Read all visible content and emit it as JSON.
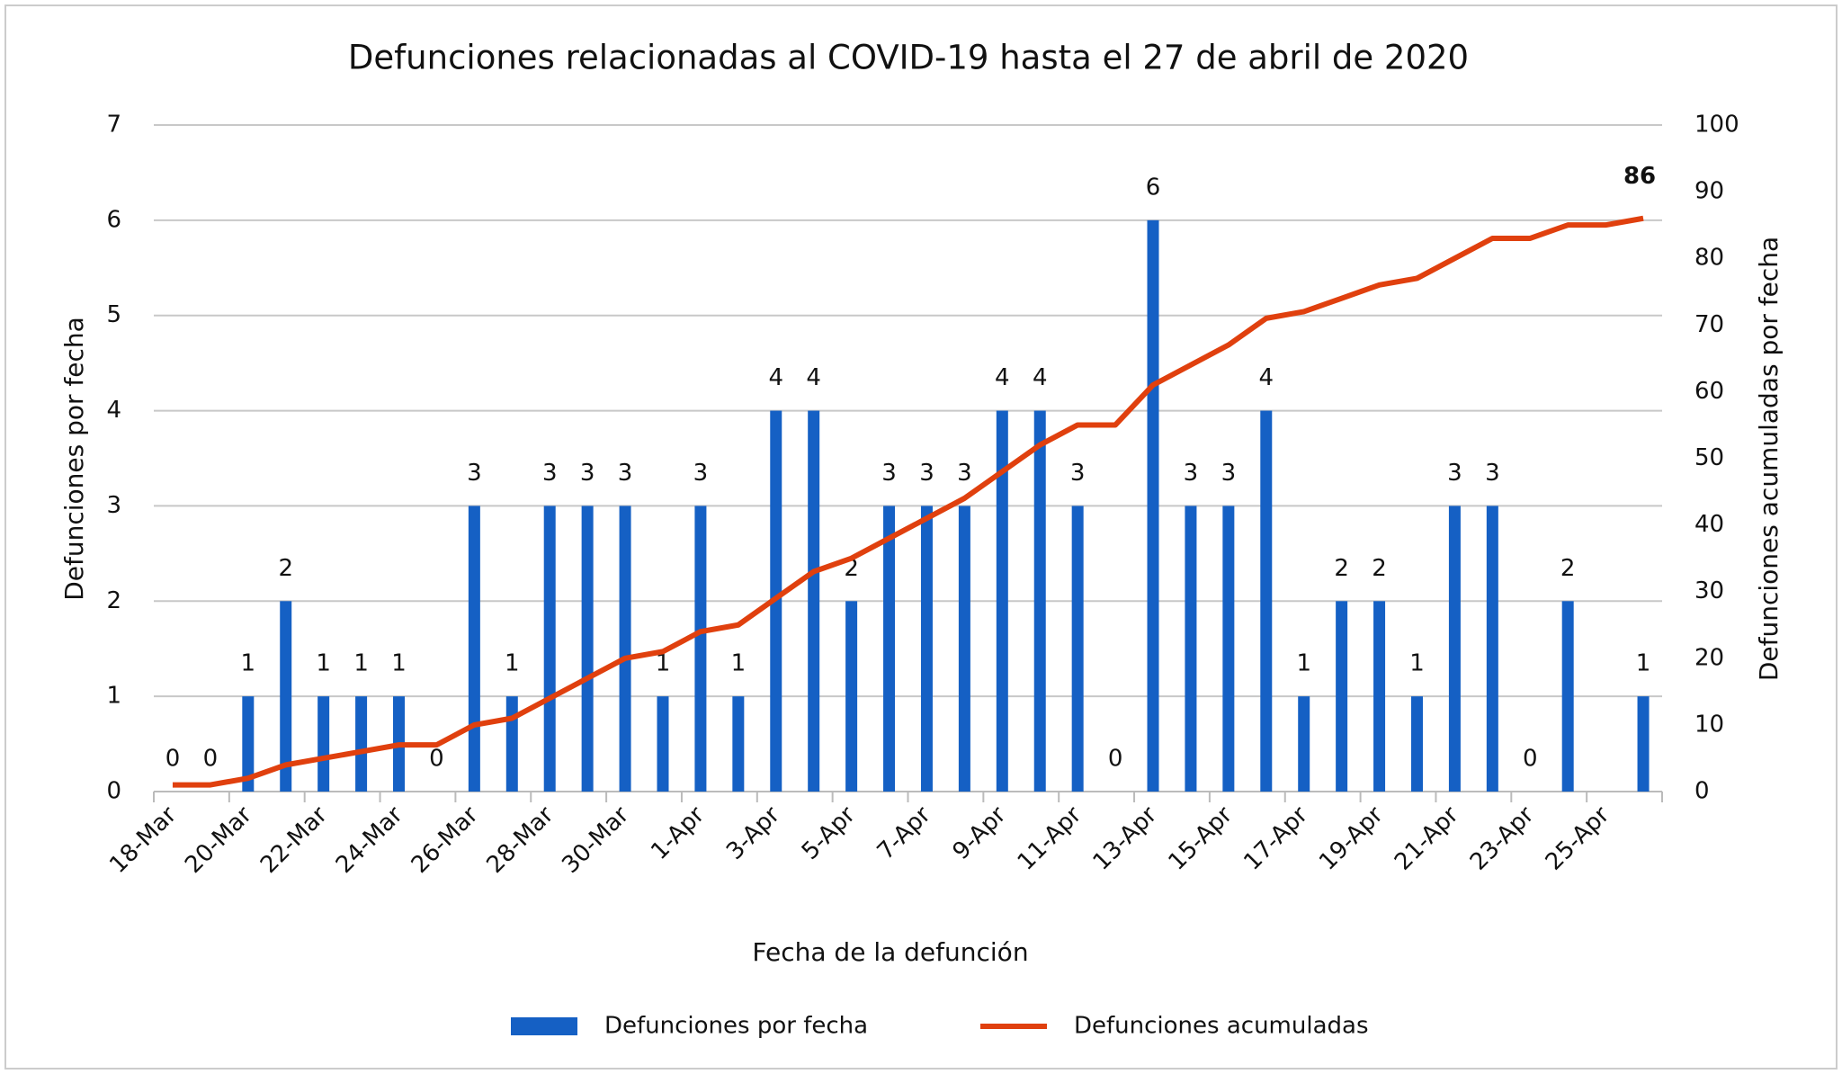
{
  "chart_data": {
    "type": "bar_line",
    "title": "Defunciones relacionadas al COVID-19 hasta el 27 de abril de 2020",
    "x_label": "Fecha de la defunción",
    "y_label": "Defunciones por fecha",
    "y2_label": "Defunciones acumuladas por fecha",
    "categories": [
      "18-Mar",
      null,
      "20-Mar",
      null,
      "22-Mar",
      null,
      "24-Mar",
      null,
      "26-Mar",
      null,
      "28-Mar",
      null,
      "30-Mar",
      null,
      "1-Apr",
      null,
      "3-Apr",
      null,
      "5-Apr",
      null,
      "7-Apr",
      null,
      "9-Apr",
      null,
      "11-Apr",
      null,
      "13-Apr",
      null,
      "15-Apr",
      null,
      "17-Apr",
      null,
      "19-Apr",
      null,
      "21-Apr",
      null,
      "23-Apr",
      null,
      "25-Apr",
      null
    ],
    "series": [
      {
        "name": "Defunciones por fecha",
        "color": "#1560c4",
        "type": "bar",
        "values": [
          0,
          0,
          1,
          2,
          1,
          1,
          1,
          0,
          3,
          1,
          3,
          3,
          3,
          1,
          3,
          1,
          4,
          4,
          2,
          3,
          3,
          3,
          4,
          4,
          3,
          0,
          6,
          3,
          3,
          4,
          1,
          2,
          2,
          1,
          3,
          3,
          0,
          2,
          0,
          1
        ],
        "value_labels": [
          "0",
          "0",
          "1",
          "2",
          "1",
          "1",
          "1",
          "0",
          "3",
          "1",
          "3",
          "3",
          "3",
          "1",
          "3",
          "1",
          "4",
          "4",
          "2",
          "3",
          "3",
          "3",
          "4",
          "4",
          "3",
          "0",
          "6",
          "3",
          "3",
          "4",
          "1",
          "2",
          "2",
          "1",
          "3",
          "3",
          "0",
          "2",
          null,
          "1"
        ]
      },
      {
        "name": "Defunciones acumuladas",
        "color": "#e0400e",
        "type": "line",
        "axis": "y2",
        "values": [
          1,
          1,
          2,
          4,
          5,
          6,
          7,
          7,
          10,
          11,
          14,
          17,
          20,
          21,
          24,
          25,
          29,
          33,
          35,
          38,
          41,
          44,
          48,
          52,
          55,
          55,
          61,
          64,
          67,
          71,
          72,
          74,
          76,
          77,
          80,
          83,
          83,
          85,
          85,
          86
        ],
        "value_labels": [
          null,
          null,
          null,
          null,
          null,
          null,
          null,
          null,
          null,
          null,
          null,
          null,
          null,
          null,
          null,
          null,
          null,
          null,
          null,
          null,
          null,
          null,
          null,
          null,
          null,
          null,
          null,
          null,
          null,
          null,
          null,
          null,
          null,
          null,
          null,
          null,
          null,
          null,
          null,
          "86"
        ]
      }
    ],
    "ylim": [
      0,
      7
    ],
    "yticks": [
      0,
      1,
      2,
      3,
      4,
      5,
      6,
      7
    ],
    "y2lim": [
      0,
      100
    ],
    "y2ticks": [
      0,
      10,
      20,
      30,
      40,
      50,
      60,
      70,
      80,
      90,
      100
    ],
    "grid": true,
    "legend": "bottom"
  }
}
